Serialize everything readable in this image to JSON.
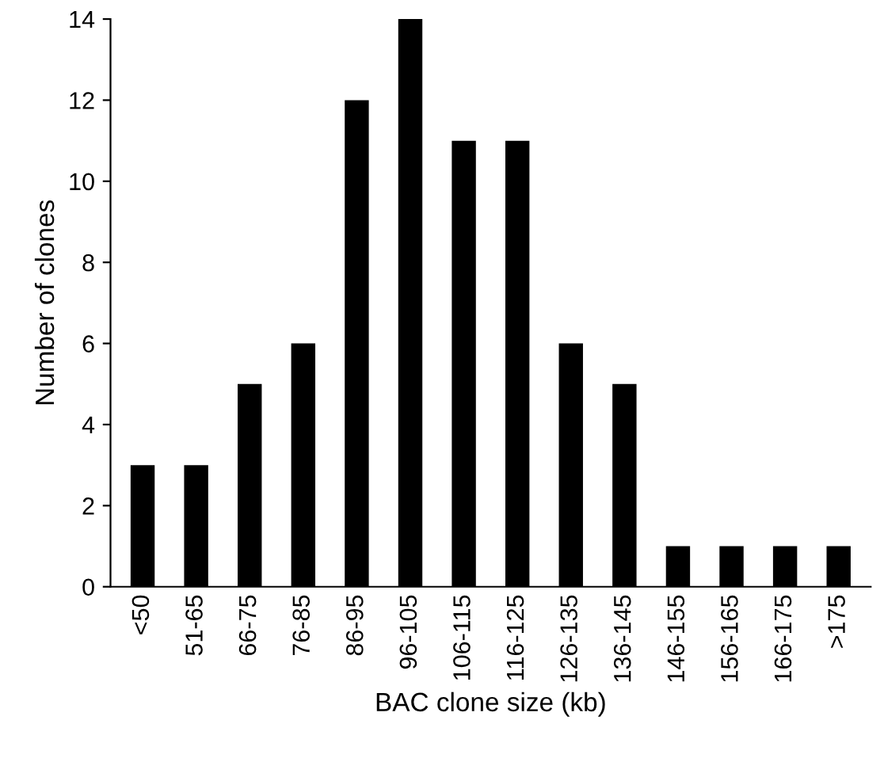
{
  "chart_data": {
    "type": "bar",
    "xlabel": "BAC clone size (kb)",
    "ylabel": "Number of clones",
    "categories": [
      "<50",
      "51-65",
      "66-75",
      "76-85",
      "86-95",
      "96-105",
      "106-115",
      "116-125",
      "126-135",
      "136-145",
      "146-155",
      "156-165",
      "166-175",
      ">175"
    ],
    "values": [
      3,
      3,
      5,
      6,
      12,
      14,
      11,
      11,
      6,
      5,
      1,
      1,
      1,
      1
    ],
    "color": "#000000",
    "ylim": [
      0,
      14
    ],
    "yticks": [
      0,
      2,
      4,
      6,
      8,
      10,
      12,
      14
    ],
    "grid": false,
    "legend": false
  }
}
